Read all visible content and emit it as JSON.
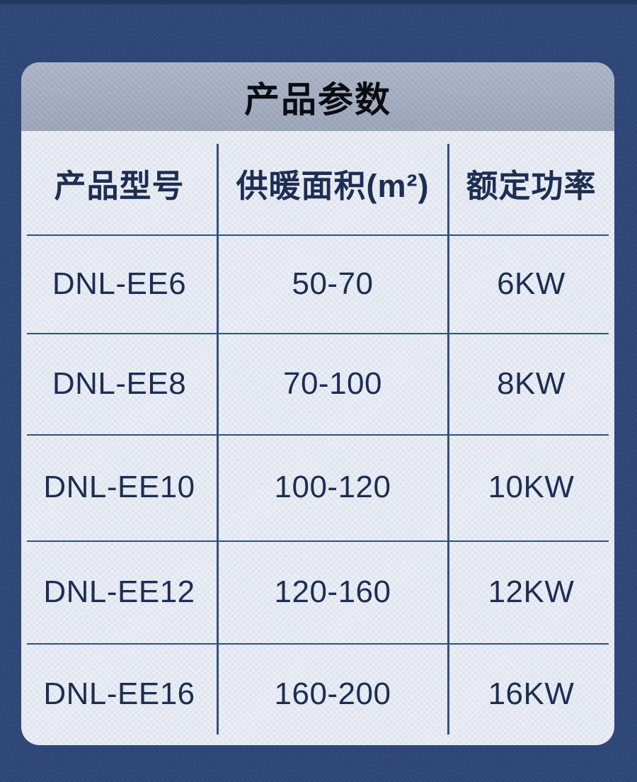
{
  "title": "产品参数",
  "table": {
    "headers": {
      "model": "产品型号",
      "area": "供暖面积(m²)",
      "power": "额定功率"
    },
    "rows": [
      {
        "model": "DNL-EE6",
        "area": "50-70",
        "power": "6KW"
      },
      {
        "model": "DNL-EE8",
        "area": "70-100",
        "power": "8KW"
      },
      {
        "model": "DNL-EE10",
        "area": "100-120",
        "power": "10KW"
      },
      {
        "model": "DNL-EE12",
        "area": "120-160",
        "power": "12KW"
      },
      {
        "model": "DNL-EE16",
        "area": "160-200",
        "power": "16KW"
      }
    ]
  },
  "colors": {
    "background": "#2e4777",
    "top_strip": "#24395f",
    "title_band": "#a1abc0",
    "card_body": "#e5e9f2",
    "grid_line": "#31517f",
    "cell_text": "#1d2e53",
    "title_text": "#0b0d12"
  },
  "chart_data": {
    "type": "table",
    "title": "产品参数",
    "columns": [
      "产品型号",
      "供暖面积(m²)",
      "额定功率"
    ],
    "rows": [
      [
        "DNL-EE6",
        "50-70",
        "6KW"
      ],
      [
        "DNL-EE8",
        "70-100",
        "8KW"
      ],
      [
        "DNL-EE10",
        "100-120",
        "10KW"
      ],
      [
        "DNL-EE12",
        "120-160",
        "12KW"
      ],
      [
        "DNL-EE16",
        "160-200",
        "16KW"
      ]
    ]
  }
}
